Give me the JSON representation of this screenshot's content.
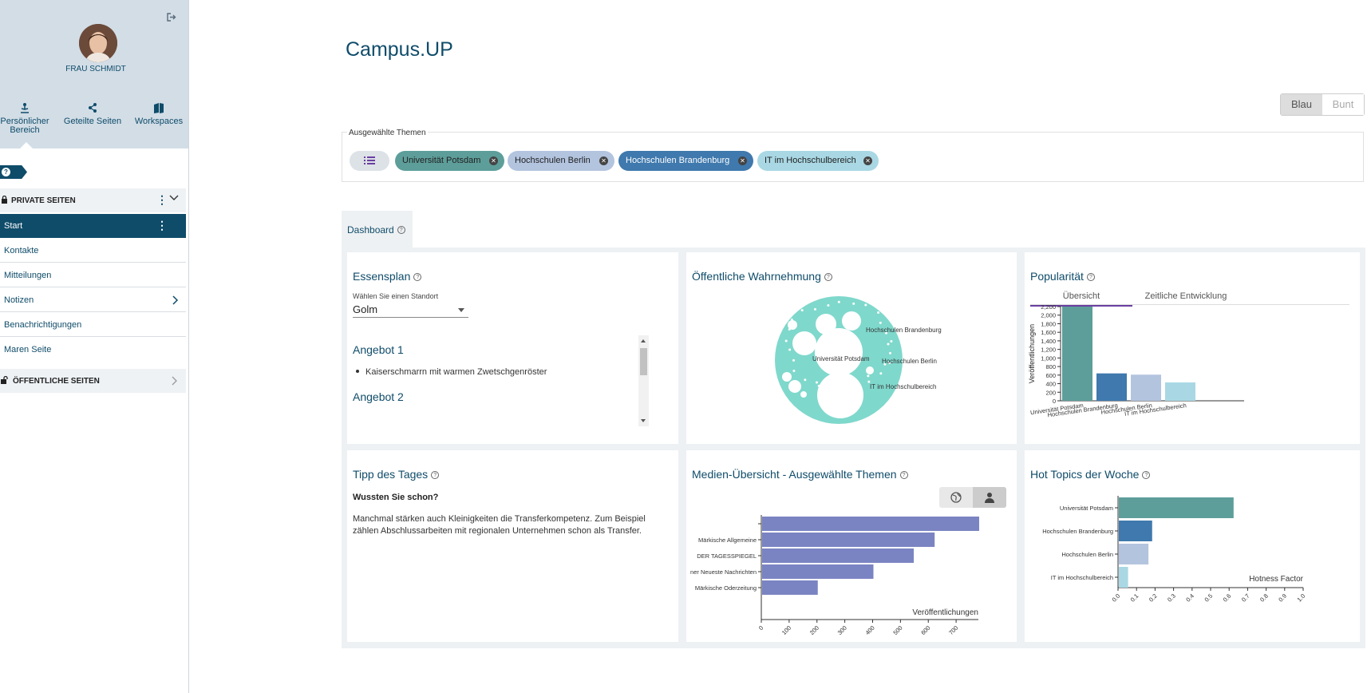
{
  "user": {
    "name": "FRAU SCHMIDT"
  },
  "nav_tabs": [
    {
      "label_line1": "Persönlicher",
      "label_line2": "Bereich",
      "icon": "person-icon"
    },
    {
      "label_line1": "Geteilte Seiten",
      "label_line2": "",
      "icon": "share-icon"
    },
    {
      "label_line1": "Workspaces",
      "label_line2": "",
      "icon": "book-icon"
    }
  ],
  "private_section": {
    "title": "PRIVATE SEITEN",
    "items": [
      {
        "label": "Start"
      },
      {
        "label": "Kontakte"
      },
      {
        "label": "Mitteilungen"
      },
      {
        "label": "Notizen"
      },
      {
        "label": "Benachrichtigungen"
      },
      {
        "label": "Maren Seite"
      }
    ]
  },
  "public_section": {
    "title": "ÖFFENTLICHE SEITEN"
  },
  "page_title": "Campus.UP",
  "color_toggle": {
    "active": "Blau",
    "inactive": "Bunt"
  },
  "themes": {
    "label": "Ausgewählte Themen",
    "chips": [
      {
        "label": "Universität Potsdam",
        "color": "#5d9e9a"
      },
      {
        "label": "Hochschulen Berlin",
        "color": "#b3c4df"
      },
      {
        "label": "Hochschulen Brandenburg",
        "color": "#3f79ad"
      },
      {
        "label": "IT im Hochschulbereich",
        "color": "#a9d8e4"
      }
    ]
  },
  "dashboard_tab": "Dashboard",
  "essensplan": {
    "title": "Essensplan",
    "select_label": "Wählen Sie einen Standort",
    "select_value": "Golm",
    "offers": [
      {
        "title": "Angebot 1",
        "dish": "Kaiserschmarrn mit warmen Zwetschgenröster"
      },
      {
        "title": "Angebot 2",
        "dish": ""
      }
    ]
  },
  "wahrnehmung": {
    "title": "Öffentliche Wahrnehmung",
    "labels": [
      "Universität Potsdam",
      "Hochschulen Brandenburg",
      "Hochschulen Berlin",
      "IT im Hochschulbereich"
    ],
    "bubble_color": "#7fd8cc"
  },
  "popularitaet": {
    "title": "Popularität",
    "tabs": [
      "Übersicht",
      "Zeitliche Entwicklung"
    ]
  },
  "tipp": {
    "title": "Tipp des Tages",
    "heading": "Wussten Sie schon?",
    "text": "Manchmal stärken auch Kleinigkeiten die Transferkompetenz. Zum Beispiel zählen Abschlussarbeiten mit regionalen Unternehmen schon als Transfer."
  },
  "medien": {
    "title": "Medien-Übersicht - Ausgewählte Themen"
  },
  "hot_topics": {
    "title": "Hot Topics der Woche"
  },
  "chart_data": [
    {
      "type": "bar",
      "ylabel": "Veröffentlichungen",
      "categories": [
        "Universität Potsdam",
        "Hochschulen Brandenburg",
        "Hochschulen Berlin",
        "IT im Hochschulbereich"
      ],
      "values": [
        2200,
        640,
        610,
        430
      ],
      "colors": [
        "#5d9e9a",
        "#3f79ad",
        "#b3c4df",
        "#a9d8e4"
      ],
      "yticks": [
        0,
        200,
        400,
        600,
        800,
        1000,
        1200,
        1400,
        1600,
        1800,
        2000,
        2200
      ],
      "ytick_labels": [
        "0",
        "200",
        "400",
        "600",
        "800",
        "1,000",
        "1,200",
        "1,400",
        "1,600",
        "1,800",
        "2,000",
        "2,200"
      ],
      "ylim": [
        0,
        2200
      ]
    },
    {
      "type": "bar",
      "orientation": "horizontal",
      "xlabel": "Veröffentlichungen",
      "categories": [
        "",
        "Märkische Allgemeine",
        "DER TAGESSPIEGEL",
        "ner Neueste Nachrichten",
        "Märkische Oderzeitung"
      ],
      "values": [
        780,
        620,
        545,
        400,
        200
      ],
      "color": "#7b84c2",
      "xticks": [
        0,
        100,
        200,
        300,
        400,
        500,
        600,
        700
      ],
      "xlim": [
        0,
        780
      ]
    },
    {
      "type": "bar",
      "orientation": "horizontal",
      "xlabel": "Hotness Factor",
      "categories": [
        "Universität Potsdam",
        "Hochschulen Brandenburg",
        "Hochschulen Berlin",
        "IT im Hochschulbereich"
      ],
      "values": [
        0.62,
        0.18,
        0.16,
        0.05
      ],
      "colors": [
        "#5d9e9a",
        "#3f79ad",
        "#b3c4df",
        "#a9d8e4"
      ],
      "xticks": [
        0.0,
        0.1,
        0.2,
        0.3,
        0.4,
        0.5,
        0.6,
        0.7,
        0.8,
        0.9,
        1.0
      ],
      "xtick_labels": [
        "0.0",
        "0.1",
        "0.2",
        "0.3",
        "0.4",
        "0.5",
        "0.6",
        "0.7",
        "0.8",
        "0.9",
        "1.0"
      ],
      "xlim": [
        0,
        1
      ]
    }
  ]
}
